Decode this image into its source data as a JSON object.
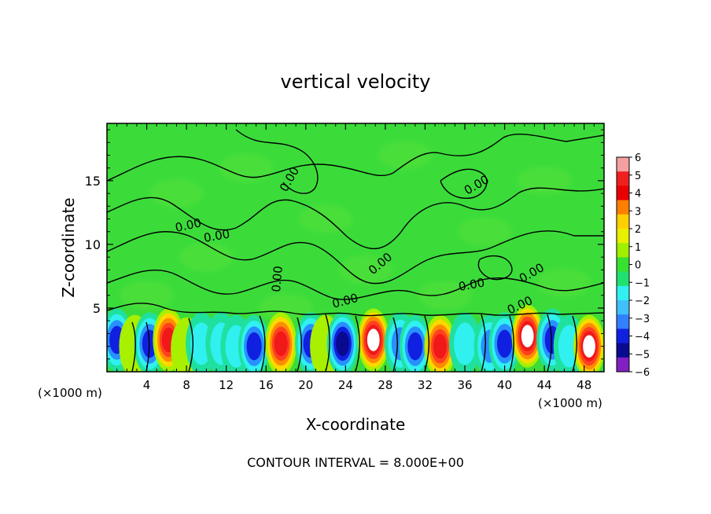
{
  "chart_data": {
    "type": "heatmap",
    "title": "vertical velocity",
    "xlabel": "X-coordinate",
    "ylabel": "Z-coordinate",
    "x_unit_left": "(×1000 m)",
    "x_unit_right": "(×1000 m)",
    "xlim": [
      0,
      50
    ],
    "ylim": [
      0,
      19.5
    ],
    "x_ticks": [
      4,
      8,
      12,
      16,
      20,
      24,
      28,
      32,
      36,
      40,
      44,
      48
    ],
    "x_tick_labels": [
      "4",
      "8",
      "12",
      "16",
      "20",
      "24",
      "28",
      "32",
      "36",
      "40",
      "44",
      "48"
    ],
    "y_ticks": [
      5,
      10,
      15
    ],
    "y_tick_labels": [
      "5",
      "10",
      "15"
    ],
    "contour_labels": [
      "0.00",
      "0.00",
      "0.00",
      "0.00",
      "0.00",
      "0.00",
      "0.00",
      "0.00",
      "0.00",
      "0.00"
    ],
    "footer": "CONTOUR INTERVAL = 8.000E+00",
    "colorbar": {
      "labels": [
        "6",
        "5",
        "4",
        "3",
        "2",
        "1",
        "0",
        "−1",
        "−2",
        "−3",
        "−4",
        "−5",
        "−6"
      ],
      "colors": [
        "#f4a0a0",
        "#f02020",
        "#e80000",
        "#ff8000",
        "#ffd000",
        "#e8f000",
        "#a0f000",
        "#38e030",
        "#20e070",
        "#30f0f0",
        "#40c0ff",
        "#3080ff",
        "#1020e0",
        "#0a0a90",
        "#8020c0"
      ]
    },
    "background_value": 0,
    "cells": [
      {
        "x": 1.0,
        "z": 2.5,
        "value": -3.5
      },
      {
        "x": 2.8,
        "z": 2.0,
        "value": 1.0
      },
      {
        "x": 4.3,
        "z": 2.2,
        "value": -3.5
      },
      {
        "x": 6.2,
        "z": 2.5,
        "value": 5.0
      },
      {
        "x": 8.0,
        "z": 1.8,
        "value": 1.0
      },
      {
        "x": 9.5,
        "z": 2.2,
        "value": -2.0
      },
      {
        "x": 11.5,
        "z": 2.2,
        "value": -1.5
      },
      {
        "x": 13.0,
        "z": 2.0,
        "value": -2.0
      },
      {
        "x": 14.8,
        "z": 2.0,
        "value": -3.5
      },
      {
        "x": 17.5,
        "z": 2.2,
        "value": 4.5
      },
      {
        "x": 20.5,
        "z": 2.2,
        "value": -3.5
      },
      {
        "x": 22.0,
        "z": 2.0,
        "value": 1.0
      },
      {
        "x": 23.7,
        "z": 2.2,
        "value": -4.5
      },
      {
        "x": 26.8,
        "z": 2.5,
        "value": 6.0
      },
      {
        "x": 29.5,
        "z": 2.2,
        "value": -3.0
      },
      {
        "x": 31.0,
        "z": 2.0,
        "value": -3.5
      },
      {
        "x": 33.5,
        "z": 2.0,
        "value": 4.5
      },
      {
        "x": 36.0,
        "z": 2.2,
        "value": -1.5
      },
      {
        "x": 38.5,
        "z": 2.0,
        "value": -2.5
      },
      {
        "x": 40.0,
        "z": 2.2,
        "value": -3.5
      },
      {
        "x": 42.3,
        "z": 2.8,
        "value": 6.0
      },
      {
        "x": 44.8,
        "z": 2.5,
        "value": -3.5
      },
      {
        "x": 46.5,
        "z": 2.0,
        "value": -2.0
      },
      {
        "x": 48.5,
        "z": 2.0,
        "value": 6.0
      }
    ]
  }
}
